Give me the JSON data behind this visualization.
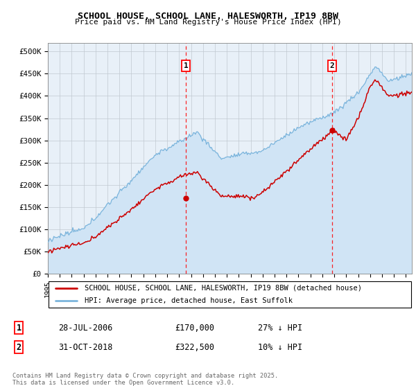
{
  "title": "SCHOOL HOUSE, SCHOOL LANE, HALESWORTH, IP19 8BW",
  "subtitle": "Price paid vs. HM Land Registry's House Price Index (HPI)",
  "ylabel_ticks": [
    "£0",
    "£50K",
    "£100K",
    "£150K",
    "£200K",
    "£250K",
    "£300K",
    "£350K",
    "£400K",
    "£450K",
    "£500K"
  ],
  "ytick_values": [
    0,
    50000,
    100000,
    150000,
    200000,
    250000,
    300000,
    350000,
    400000,
    450000,
    500000
  ],
  "ylim": [
    0,
    520000
  ],
  "xlim_start": 1995.0,
  "xlim_end": 2025.5,
  "hpi_color": "#7ab4dc",
  "hpi_fill_color": "#d0e4f5",
  "price_color": "#cc0000",
  "marker1_date": 2006.57,
  "marker1_price": 170000,
  "marker2_date": 2018.83,
  "marker2_price": 322500,
  "legend_line1": "SCHOOL HOUSE, SCHOOL LANE, HALESWORTH, IP19 8BW (detached house)",
  "legend_line2": "HPI: Average price, detached house, East Suffolk",
  "table_row1_date": "28-JUL-2006",
  "table_row1_price": "£170,000",
  "table_row1_hpi": "27% ↓ HPI",
  "table_row2_date": "31-OCT-2018",
  "table_row2_price": "£322,500",
  "table_row2_hpi": "10% ↓ HPI",
  "footer": "Contains HM Land Registry data © Crown copyright and database right 2025.\nThis data is licensed under the Open Government Licence v3.0.",
  "plot_bg": "#e8f0f8"
}
